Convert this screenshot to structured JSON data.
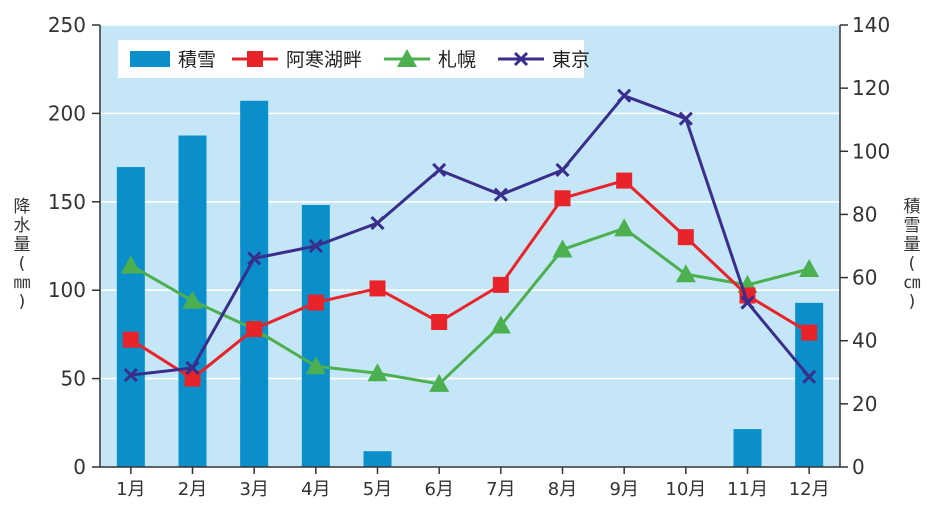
{
  "chart_data": {
    "type": "bar+line",
    "categories": [
      "1月",
      "2月",
      "3月",
      "4月",
      "5月",
      "6月",
      "7月",
      "8月",
      "9月",
      "10月",
      "11月",
      "12月"
    ],
    "left_axis": {
      "label": "降水量(㎜)",
      "ylim": [
        0,
        250
      ],
      "ticks": [
        "0",
        "50",
        "100",
        "150",
        "200",
        "250"
      ]
    },
    "right_axis": {
      "label": "積雪量(㎝)",
      "ylim": [
        0,
        140
      ],
      "ticks": [
        "0",
        "20",
        "40",
        "60",
        "80",
        "100",
        "120",
        "140"
      ]
    },
    "bar_series": {
      "name": "積雪",
      "axis": "right",
      "color": "#0a8fca",
      "values": [
        95,
        105,
        116,
        83,
        5,
        0,
        0,
        0,
        0,
        0,
        12,
        52
      ]
    },
    "line_series": [
      {
        "name": "阿寒湖畔",
        "axis": "left",
        "color": "#e8232a",
        "marker": "square",
        "values": [
          72,
          50,
          78,
          93,
          101,
          82,
          103,
          152,
          162,
          130,
          97,
          76
        ]
      },
      {
        "name": "札幌",
        "axis": "left",
        "color": "#4cb050",
        "marker": "triangle",
        "values": [
          114,
          94,
          78,
          57,
          53,
          47,
          80,
          123,
          135,
          109,
          103,
          112
        ]
      },
      {
        "name": "東京",
        "axis": "left",
        "color": "#3a2e8c",
        "marker": "x",
        "values": [
          52,
          56,
          118,
          125,
          138,
          168,
          154,
          168,
          210,
          197,
          93,
          51
        ]
      }
    ],
    "grid": true,
    "legend_placement": "top-left"
  }
}
